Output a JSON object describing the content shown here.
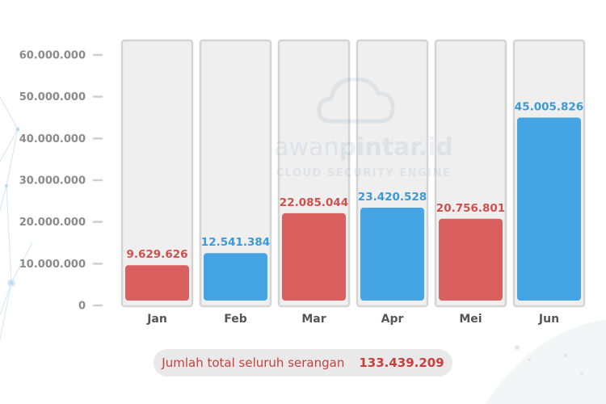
{
  "colors": {
    "red": "#d9605f",
    "red_text": "#d0504e",
    "blue": "#45a4e3",
    "blue_text": "#3a9ad9",
    "column_bg": "#efefef",
    "column_border": "#d4d4d4"
  },
  "watermark": {
    "brand_light": "awan",
    "brand_bold": "pintar.id",
    "tagline": "CLOUD SECURITY ENGINE",
    "icon": "cloud-icon"
  },
  "chart_data": {
    "type": "bar",
    "categories": [
      "Jan",
      "Feb",
      "Mar",
      "Apr",
      "Mei",
      "Jun"
    ],
    "values": [
      9629626,
      12541384,
      22085044,
      23420528,
      20756801,
      45005826
    ],
    "value_labels": [
      "9.629.626",
      "12.541.384",
      "22.085.044",
      "23.420.528",
      "20.756.801",
      "45.005.826"
    ],
    "bar_colors": [
      "red",
      "blue",
      "red",
      "blue",
      "red",
      "blue"
    ],
    "ylim": [
      0,
      60000000
    ],
    "yticks": [
      0,
      10000000,
      20000000,
      30000000,
      40000000,
      50000000,
      60000000
    ],
    "ytick_labels": [
      "0",
      "10.000.000",
      "20.000.000",
      "30.000.000",
      "40.000.000",
      "50.000.000",
      "60.000.000"
    ],
    "title": "",
    "xlabel": "",
    "ylabel": "",
    "grid": false,
    "legend": "none"
  },
  "total": {
    "label": "Jumlah total seluruh serangan",
    "value": "133.439.209"
  }
}
